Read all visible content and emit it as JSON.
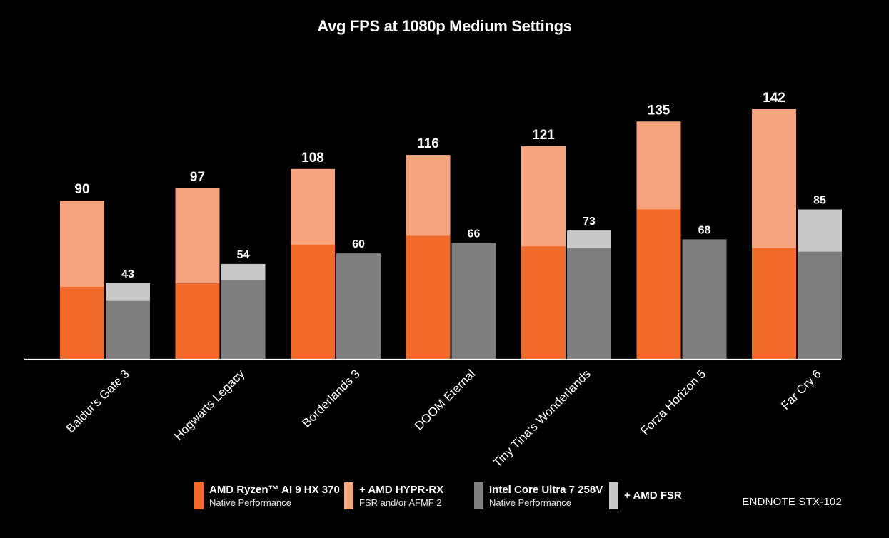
{
  "chart_data": {
    "type": "bar",
    "title": "Avg FPS at 1080p Medium Settings",
    "xlabel": "",
    "ylabel": "",
    "ylim": [
      0,
      150
    ],
    "grid": false,
    "categories": [
      "Baldur's Gate 3",
      "Hogwarts Legacy",
      "Borderlands 3",
      "DOOM Eternal",
      "Tiny Tina's Wonderlands",
      "Forza Horizon 5",
      "Far Cry 6"
    ],
    "series": [
      {
        "name": "AMD Ryzen™ AI 9 HX 370 Native Performance",
        "color": "#f26a2a",
        "values": [
          41,
          43,
          65,
          70,
          64,
          85,
          63
        ]
      },
      {
        "name": "+ AMD HYPR-RX FSR and/or AFMF 2",
        "color": "#f6a47e",
        "values": [
          90,
          97,
          108,
          116,
          121,
          135,
          142
        ]
      },
      {
        "name": "Intel Core Ultra 7 258V Native Performance",
        "color": "#7f7f7f",
        "values": [
          33,
          45,
          60,
          66,
          63,
          68,
          61
        ]
      },
      {
        "name": "+ AMD FSR",
        "color": "#c8c8c8",
        "values": [
          43,
          54,
          null,
          null,
          73,
          null,
          85
        ]
      }
    ],
    "data_labels": {
      "amd": [
        "90",
        "97",
        "108",
        "116",
        "121",
        "135",
        "142"
      ],
      "intel": [
        "43",
        "54",
        "60",
        "66",
        "73",
        "68",
        "85"
      ]
    },
    "legend_position": "bottom"
  },
  "legend": [
    {
      "name": "AMD Ryzen™ AI 9 HX 370",
      "sub": "Native Performance",
      "color": "#f26a2a"
    },
    {
      "name": "+ AMD HYPR-RX",
      "sub": "FSR and/or AFMF 2",
      "color": "#f6a47e"
    },
    {
      "name": "Intel Core Ultra 7 258V",
      "sub": "Native Performance",
      "color": "#7f7f7f"
    },
    {
      "name": "+ AMD FSR",
      "sub": "",
      "color": "#c8c8c8"
    }
  ],
  "endnote": "ENDNOTE STX-102"
}
